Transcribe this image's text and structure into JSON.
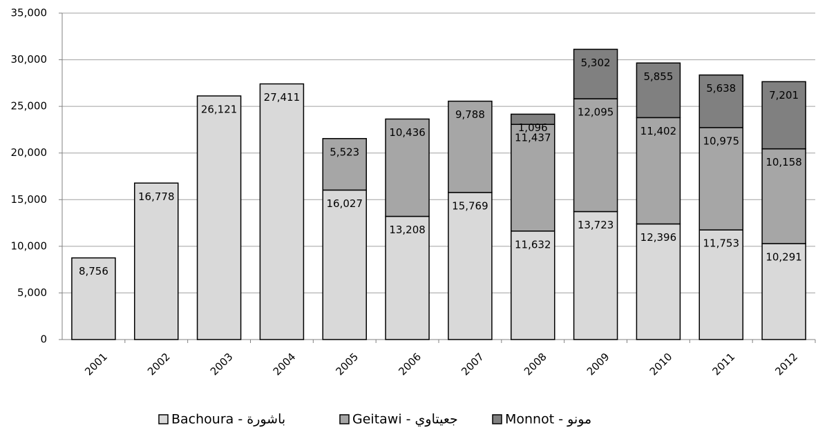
{
  "chart_data": {
    "type": "stacked_bar",
    "categories": [
      "2001",
      "2002",
      "2003",
      "2004",
      "2005",
      "2006",
      "2007",
      "2008",
      "2009",
      "2010",
      "2011",
      "2012"
    ],
    "series": [
      {
        "name": "Bachoura - باشورة",
        "color": "#d9d9d9",
        "values": [
          8756,
          16778,
          26121,
          27411,
          16027,
          13208,
          15769,
          11632,
          13723,
          12396,
          11753,
          10291
        ],
        "value_labels": [
          "8,756",
          "16,778",
          "26,121",
          "27,411",
          "16,027",
          "13,208",
          "15,769",
          "11,632",
          "13,723",
          "12,396",
          "11,753",
          "10,291"
        ]
      },
      {
        "name": "Geitawi - جعيتاوي",
        "color": "#a6a6a6",
        "values": [
          null,
          null,
          null,
          null,
          5523,
          10436,
          9788,
          11437,
          12095,
          11402,
          10975,
          10158
        ],
        "value_labels": [
          null,
          null,
          null,
          null,
          "5,523",
          "10,436",
          "9,788",
          "11,437",
          "12,095",
          "11,402",
          "10,975",
          "10,158"
        ]
      },
      {
        "name": "Monnot - مونو",
        "color": "#808080",
        "values": [
          null,
          null,
          null,
          null,
          null,
          null,
          null,
          1096,
          5302,
          5855,
          5638,
          7201
        ],
        "value_labels": [
          null,
          null,
          null,
          null,
          null,
          null,
          null,
          "1,096",
          "5,302",
          "5,855",
          "5,638",
          "7,201"
        ]
      }
    ],
    "ylim": [
      0,
      35000
    ],
    "yticks": [
      0,
      {
        "value": 5000,
        "label": "5,000"
      },
      {
        "value": 10000,
        "label": "10,000"
      },
      {
        "value": 15000,
        "label": "15,000"
      },
      {
        "value": 20000,
        "label": "20,000"
      },
      {
        "value": 25000,
        "label": "25,000"
      },
      {
        "value": 30000,
        "label": "30,000"
      },
      {
        "value": 35000,
        "label": "35,000"
      }
    ],
    "grid": true,
    "legend": "bottom"
  }
}
